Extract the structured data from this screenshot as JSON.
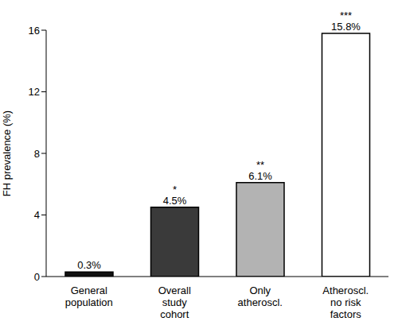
{
  "chart_data": {
    "type": "bar",
    "y_label": "FH prevalence (%)",
    "categories": [
      "General\npopulation",
      "Overall\nstudy\ncohort",
      "Only\natheroscl.",
      "Atheroscl.\nno risk\nfactors"
    ],
    "values": [
      0.3,
      4.5,
      6.1,
      15.8
    ],
    "value_labels": [
      "0.3%",
      "4.5%",
      "6.1%",
      "15.8%"
    ],
    "annotations": [
      null,
      "*",
      "**",
      "***"
    ],
    "colors": [
      "#111111",
      "#3a3a3a",
      "#b3b3b3",
      "#ffffff"
    ],
    "ylim": [
      0,
      16
    ],
    "yticks": [
      0,
      4,
      8,
      12,
      16
    ],
    "grid": false,
    "data_labels": true
  }
}
